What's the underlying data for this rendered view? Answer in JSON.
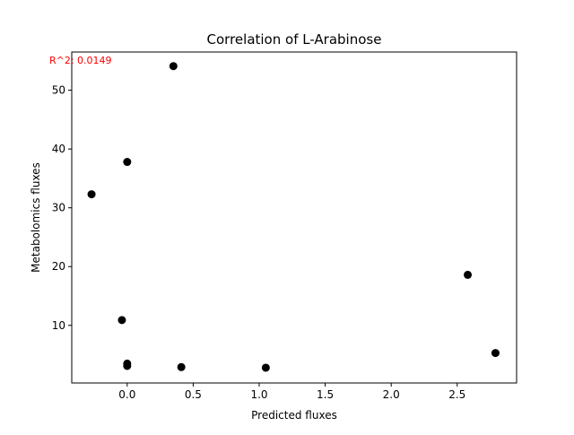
{
  "chart_data": {
    "type": "scatter",
    "title": "Correlation of L-Arabinose",
    "xlabel": "Predicted fluxes",
    "ylabel": "Metabolomics fluxes",
    "annotation": "R^2: 0.0149",
    "annotation_color": "#ff0000",
    "marker_color": "#000000",
    "xlim": [
      -0.42,
      2.95
    ],
    "ylim": [
      0.2,
      56.5
    ],
    "x_ticks": [
      0.0,
      0.5,
      1.0,
      1.5,
      2.0,
      2.5
    ],
    "x_tick_labels": [
      "0.0",
      "0.5",
      "1.0",
      "1.5",
      "2.0",
      "2.5"
    ],
    "y_ticks": [
      10,
      20,
      30,
      40,
      50
    ],
    "y_tick_labels": [
      "10",
      "20",
      "30",
      "40",
      "50"
    ],
    "grid": false,
    "points": [
      {
        "x": 0.35,
        "y": 54.1
      },
      {
        "x": 0.0,
        "y": 37.8
      },
      {
        "x": -0.27,
        "y": 32.3
      },
      {
        "x": 2.58,
        "y": 18.6
      },
      {
        "x": -0.04,
        "y": 10.9
      },
      {
        "x": 2.79,
        "y": 5.3
      },
      {
        "x": 0.0,
        "y": 3.5
      },
      {
        "x": 0.0,
        "y": 3.1
      },
      {
        "x": 0.41,
        "y": 2.9
      },
      {
        "x": 1.05,
        "y": 2.8
      }
    ]
  }
}
